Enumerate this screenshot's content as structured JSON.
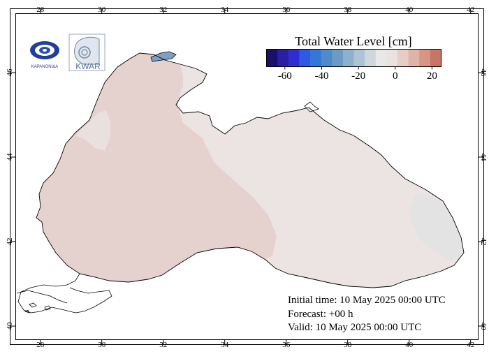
{
  "map": {
    "lon_ticks": [
      "28",
      "30",
      "32",
      "34",
      "36",
      "38",
      "40",
      "42"
    ],
    "lat_ticks": [
      "40",
      "42",
      "44",
      "46"
    ],
    "colors": {
      "sea_west": "#e5d2cf",
      "sea_center": "#ebe4e2",
      "sea_east": "#e4e3e3",
      "sea_pale": "#eae0de",
      "lagoon": "#7f9fc6",
      "coast": "#000000"
    }
  },
  "colorbar": {
    "title": "Total Water Level [cm]",
    "labels": [
      "-60",
      "-40",
      "-20",
      "0",
      "20"
    ],
    "colors": [
      "#18106a",
      "#2a1fa0",
      "#2c2ed2",
      "#2f58e3",
      "#3577d8",
      "#4f8acb",
      "#6c9ac6",
      "#8eb0cf",
      "#afc3d6",
      "#cfd7de",
      "#e8e8e9",
      "#ece2df",
      "#e7cdc6",
      "#dfb3a7",
      "#d69686",
      "#c97464"
    ]
  },
  "info": {
    "initial": "Initial time: 10 May 2025 00:00 UTC",
    "forecast": "Forecast: +00 h",
    "valid": "Valid: 10 May 2025 00:00 UTC"
  },
  "logos": {
    "left_text": "ΚΑΡΑΝΟΝΙΔΑ",
    "right_text": "KWAR"
  }
}
